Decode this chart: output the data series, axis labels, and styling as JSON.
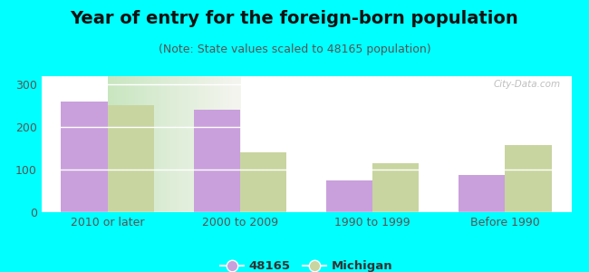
{
  "title": "Year of entry for the foreign-born population",
  "subtitle": "(Note: State values scaled to 48165 population)",
  "categories": [
    "2010 or later",
    "2000 to 2009",
    "1990 to 1999",
    "Before 1990"
  ],
  "values_48165": [
    260,
    242,
    75,
    88
  ],
  "values_michigan": [
    252,
    140,
    115,
    157
  ],
  "bar_color_48165": "#c9a0dc",
  "bar_color_michigan": "#c8d5a0",
  "background_color": "#00ffff",
  "plot_bg_left": "#c8e6c0",
  "plot_bg_right": "#f5f5f0",
  "ylim": [
    0,
    320
  ],
  "yticks": [
    0,
    100,
    200,
    300
  ],
  "legend_label_1": "48165",
  "legend_label_2": "Michigan",
  "bar_width": 0.35,
  "grid_color": "#ffffff",
  "watermark": "City-Data.com",
  "title_fontsize": 14,
  "subtitle_fontsize": 9,
  "tick_fontsize": 9
}
